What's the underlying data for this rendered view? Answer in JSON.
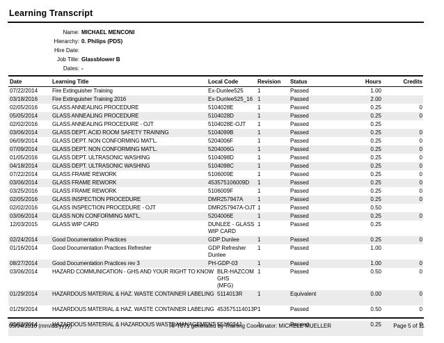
{
  "header": {
    "title": "Learning Transcript"
  },
  "meta": {
    "fields": [
      {
        "label": "Name:",
        "value": "MICHAEL MENCONI"
      },
      {
        "label": "Hierarchy:",
        "value": "0. Philips (PDS)"
      },
      {
        "label": "Hire Date:",
        "value": ""
      },
      {
        "label": "Job Title:",
        "value": "Glassblower B"
      },
      {
        "label": "Dates:",
        "value": "-"
      }
    ]
  },
  "table": {
    "columns": [
      "Date",
      "Learning Title",
      "Local Code",
      "Revision",
      "Status",
      "Hours",
      "Credits"
    ],
    "column_keys": [
      "date",
      "title",
      "local_code",
      "revision",
      "status",
      "hours",
      "credits"
    ],
    "rows": [
      {
        "date": "07/22/2014",
        "title": "Fire Extinguisher Training",
        "local_code": "Ex-Dunlee525",
        "revision": "1",
        "status": "Passed",
        "hours": "1.00",
        "credits": ""
      },
      {
        "date": "03/18/2016",
        "title": "Fire Extinguisher Training 2016",
        "local_code": "Ex-Dunlee525_16",
        "revision": "1",
        "status": "Passed",
        "hours": "2.00",
        "credits": ""
      },
      {
        "date": "02/05/2016",
        "title": "GLASS ANNEALING PROCEDURE",
        "local_code": "5104028E",
        "revision": "1",
        "status": "Passed",
        "hours": "0.25",
        "credits": "0"
      },
      {
        "date": "05/05/2014",
        "title": "GLASS ANNEALING PROCEDURE",
        "local_code": "5104028D",
        "revision": "1",
        "status": "Passed",
        "hours": "0.25",
        "credits": "0"
      },
      {
        "date": "02/02/2016",
        "title": "GLASS ANNEALING PROCEDURE - OJT",
        "local_code": "5104028E-OJT",
        "revision": "1",
        "status": "Passed",
        "hours": "0.25",
        "credits": ""
      },
      {
        "date": "03/06/2014",
        "title": "GLASS DEPT. ACID ROOM SAFETY TRAINING",
        "local_code": "5104099B",
        "revision": "1",
        "status": "Passed",
        "hours": "0.25",
        "credits": "0"
      },
      {
        "date": "06/09/2014",
        "title": "GLASS DEPT. NON CONFORMING MAT'L.",
        "local_code": "5204006F",
        "revision": "1",
        "status": "Passed",
        "hours": "0.25",
        "credits": "0"
      },
      {
        "date": "07/09/2014",
        "title": "GLASS DEPT. NON CONFORMING MAT'L.",
        "local_code": "5204006G",
        "revision": "1",
        "status": "Passed",
        "hours": "0.25",
        "credits": "0"
      },
      {
        "date": "01/05/2016",
        "title": "GLASS DEPT. ULTRASONIC WASHING",
        "local_code": "5104098D",
        "revision": "1",
        "status": "Passed",
        "hours": "0.25",
        "credits": "0"
      },
      {
        "date": "04/18/2014",
        "title": "GLASS DEPT. ULTRASONIC WASHING",
        "local_code": "5104098C",
        "revision": "1",
        "status": "Passed",
        "hours": "0.25",
        "credits": "0"
      },
      {
        "date": "07/22/2014",
        "title": "GLASS FRAME REWORK",
        "local_code": "5106009E",
        "revision": "1",
        "status": "Passed",
        "hours": "0.25",
        "credits": "0"
      },
      {
        "date": "03/06/2014",
        "title": "GLASS FRAME REWORK",
        "local_code": "453575106009D",
        "revision": "1",
        "status": "Passed",
        "hours": "0.25",
        "credits": "0"
      },
      {
        "date": "03/25/2016",
        "title": "GLASS FRAME REWORK",
        "local_code": "5106009F",
        "revision": "1",
        "status": "Passed",
        "hours": "0.25",
        "credits": "0"
      },
      {
        "date": "02/05/2016",
        "title": "GLASS INSPECTION PROCEDURE",
        "local_code": "DMR257947A",
        "revision": "1",
        "status": "Passed",
        "hours": "0.25",
        "credits": "0"
      },
      {
        "date": "02/02/2016",
        "title": "GLASS INSPECTION PROCEDURE - OJT",
        "local_code": "DMR257947A-OJT",
        "revision": "1",
        "status": "Passed",
        "hours": "0.50",
        "credits": ""
      },
      {
        "date": "03/06/2014",
        "title": "GLASS NON CONFORMING MAT'L.",
        "local_code": "5204006E",
        "revision": "1",
        "status": "Passed",
        "hours": "0.25",
        "credits": "0"
      },
      {
        "date": "12/03/2015",
        "title": "GLASS WIP CARD",
        "local_code": "DUNLEE - GLASS\nWIP CARD",
        "revision": "1",
        "status": "Passed",
        "hours": "0.25",
        "credits": ""
      },
      {
        "date": "02/24/2014",
        "title": "Good Documentation Practices",
        "local_code": "GDP Dunlee",
        "revision": "1",
        "status": "Passed",
        "hours": "0.25",
        "credits": "0"
      },
      {
        "date": "01/16/2014",
        "title": "Good Documentation Practices Refresher",
        "local_code": "GDP Refresher\nDunlee",
        "revision": "1",
        "status": "Passed",
        "hours": "1.00",
        "credits": ""
      },
      {
        "date": "08/27/2014",
        "title": "Good Documentation Practices rev 3",
        "local_code": "PH-GDP-03",
        "revision": "1",
        "status": "Passed",
        "hours": "1.00",
        "credits": "0"
      },
      {
        "date": "03/06/2014",
        "title": "HAZARD COMMUNICATION - GHS AND YOUR RIGHT TO KNOW",
        "local_code": "BLR-HAZCOM GHS\n(MFG)",
        "revision": "1",
        "status": "Passed",
        "hours": "0.50",
        "credits": "0"
      },
      {
        "date": "01/29/2014",
        "title": "HAZARDOUS MATERIAL & HAZ. WASTE CONTAINER LABELING",
        "local_code": "5114013R",
        "revision": "1",
        "status": "Equivalent",
        "hours": "0.00",
        "credits": "0",
        "tall": true
      },
      {
        "date": "01/29/2014",
        "title": "HAZARDOUS MATERIAL & HAZ. WASTE CONTAINER LABELING",
        "local_code": "453575114013P",
        "revision": "1",
        "status": "Passed",
        "hours": "0.50",
        "credits": "0",
        "tall": true
      },
      {
        "date": "03/03/2014",
        "title": "HAZARDOUS MATERIAL & HAZARDOUS WASTE MANAGEMENT",
        "local_code": "5518024J",
        "revision": "1",
        "status": "Passed",
        "hours": "0.25",
        "credits": "0",
        "tall": true
      }
    ]
  },
  "footer": {
    "left": "05/04/2016 (mm/dd/yyyy)",
    "center": "RPT071 generated by Training Coordinator: MICHELE MUELLER",
    "right": "Page 5 of  11"
  },
  "colors": {
    "stripe": "#ebebeb",
    "text": "#000000",
    "rule": "#111111"
  }
}
